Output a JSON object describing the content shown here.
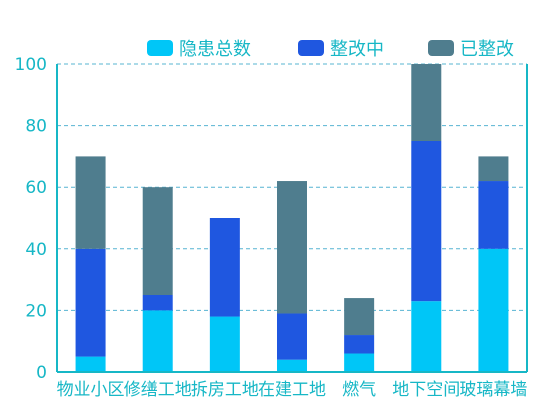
{
  "colors": {
    "axis": "#17b7c6",
    "grid": "#1f9bc4",
    "tick_text": "#17b7c6",
    "legend_text": "#17b7c6"
  },
  "chart_data": {
    "type": "bar",
    "stacked": true,
    "categories": [
      "物业小区",
      "修缮工地",
      "拆房工地",
      "在建工地",
      "燃气",
      "地下空间",
      "玻璃幕墙"
    ],
    "series": [
      {
        "name": "隐患总数",
        "color": "#00c6f7",
        "values": [
          5,
          20,
          18,
          4,
          6,
          23,
          40
        ]
      },
      {
        "name": "整改中",
        "color": "#1f57e0",
        "values": [
          35,
          5,
          32,
          15,
          6,
          52,
          22
        ]
      },
      {
        "name": "已整改",
        "color": "#4f7d8e",
        "values": [
          30,
          35,
          0,
          43,
          12,
          25,
          8
        ]
      }
    ],
    "ylim": [
      0,
      100
    ],
    "yticks": [
      0,
      20,
      40,
      60,
      80,
      100
    ],
    "grid": "horizontal-dashed",
    "legend_position": "top-right"
  }
}
